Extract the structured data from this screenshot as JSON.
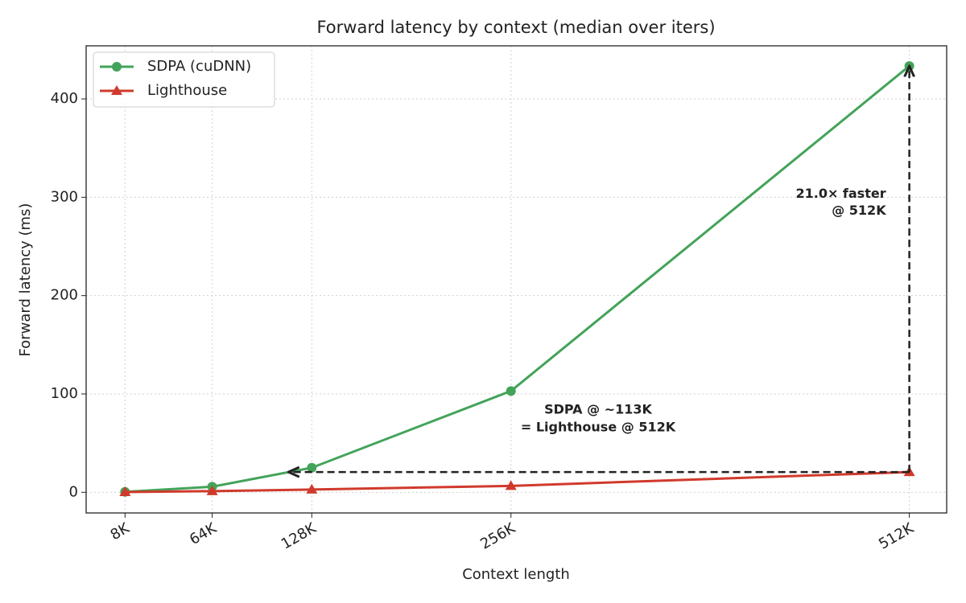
{
  "chart_data": {
    "type": "line",
    "title": "Forward latency by context (median over iters)",
    "x_label": "Context length",
    "y_label": "Forward latency (ms)",
    "x": [
      8,
      64,
      128,
      256,
      512
    ],
    "series": [
      {
        "name": "SDPA (cuDNN)",
        "color": "#43a35a",
        "marker": "circle",
        "values": [
          0.5,
          5.7,
          25,
          103,
          433.5
        ]
      },
      {
        "name": "Lighthouse",
        "color": "#d03a2c",
        "marker": "triangle",
        "values": [
          0.3,
          1.2,
          2.8,
          6.5,
          20.6
        ]
      }
    ],
    "xlim": [
      -17,
      536
    ],
    "xticks": [
      {
        "value": 8,
        "label": "8K"
      },
      {
        "value": 64,
        "label": "64K"
      },
      {
        "value": 128,
        "label": "128K"
      },
      {
        "value": 256,
        "label": "256K"
      },
      {
        "value": 512,
        "label": "512K"
      }
    ],
    "ylim": [
      -21,
      454
    ],
    "yticks": [
      0,
      100,
      200,
      300,
      400
    ],
    "grid": true,
    "legend": "upper-left",
    "annotations": [
      {
        "lines": [
          "21.0× faster",
          "@ 512K"
        ]
      },
      {
        "lines": [
          "SDPA @ ~113K",
          "= Lighthouse @ 512K"
        ],
        "x": 113
      }
    ]
  }
}
